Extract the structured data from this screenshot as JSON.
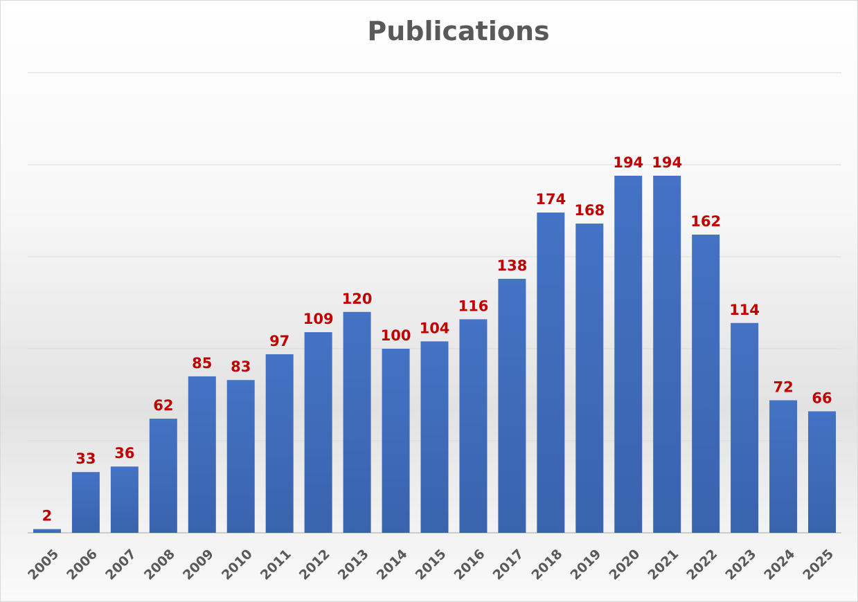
{
  "chart_data": {
    "type": "bar",
    "title": "Publications",
    "xlabel": "",
    "ylabel": "",
    "categories": [
      "2005",
      "2006",
      "2007",
      "2008",
      "2009",
      "2010",
      "2011",
      "2012",
      "2013",
      "2014",
      "2015",
      "2016",
      "2017",
      "2018",
      "2019",
      "2020",
      "2021",
      "2022",
      "2023",
      "2024",
      "2025"
    ],
    "values": [
      2,
      33,
      36,
      62,
      85,
      83,
      97,
      109,
      120,
      100,
      104,
      116,
      138,
      174,
      168,
      194,
      194,
      162,
      114,
      72,
      66
    ],
    "ylim": [
      0,
      250
    ],
    "grid": true,
    "y_tick_labels_shown": false,
    "legend": "none",
    "colors": {
      "bar": "#4472c4",
      "bar_dark": "#3a63ad",
      "data_label": "#c00000",
      "tick_label": "#595959",
      "gridline": "#d9d9d9",
      "axis": "#bfbfbf"
    }
  }
}
